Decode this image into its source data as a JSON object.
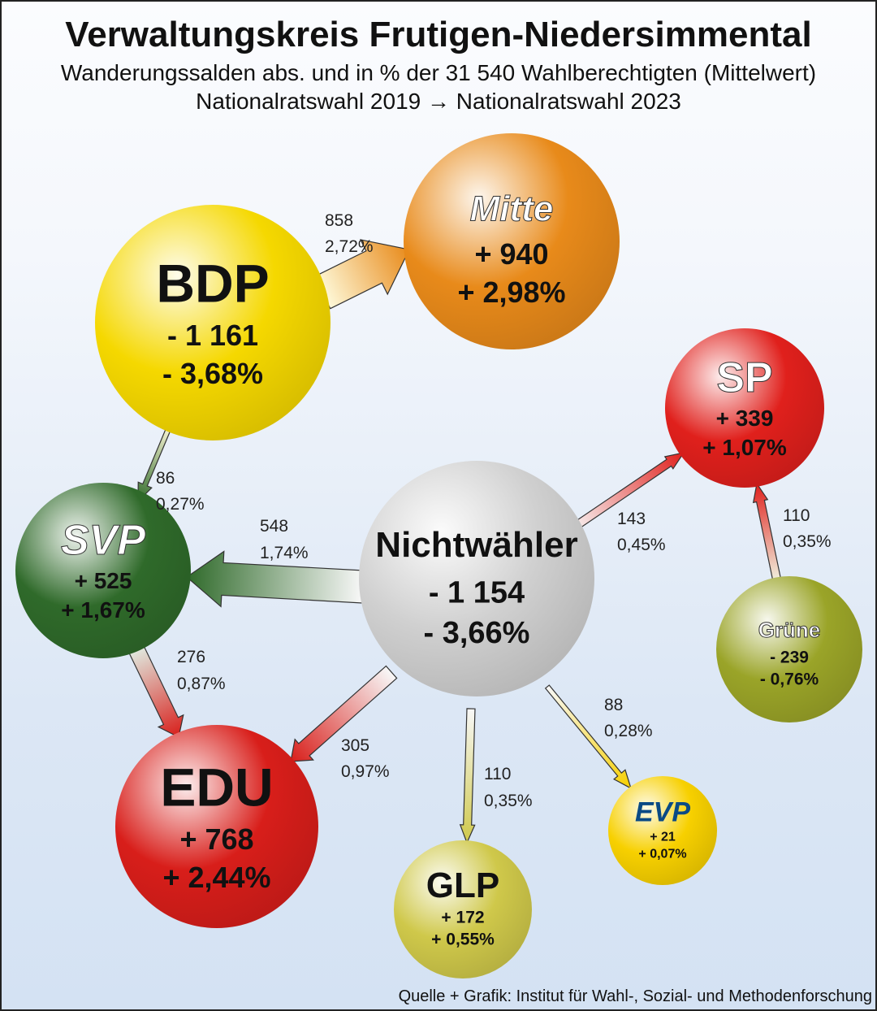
{
  "header": {
    "title": "Verwaltungskreis Frutigen-Niedersimmental",
    "subtitle": "Wanderungssalden abs. und in % der 31 540 Wahlberechtigten (Mittelwert)",
    "subtitle2": "Nationalratswahl 2019 → Nationalratswahl 2023"
  },
  "parties": [
    {
      "name": "BDP",
      "abs": "- 1 161",
      "pct": "- 3,68%",
      "color": "#f5d800"
    },
    {
      "name": "Mitte",
      "abs": "+ 940",
      "pct": "+ 2,98%",
      "color": "#e88a1a"
    },
    {
      "name": "SP",
      "abs": "+ 339",
      "pct": "+ 1,07%",
      "color": "#e0201c"
    },
    {
      "name": "Nichtwähler",
      "abs": "- 1 154",
      "pct": "- 3,66%",
      "color": "#d0d0d0"
    },
    {
      "name": "SVP",
      "abs": "+ 525",
      "pct": "+ 1,67%",
      "color": "#2f6a2a"
    },
    {
      "name": "Grüne",
      "abs": "- 239",
      "pct": "- 0,76%",
      "color": "#9aa428"
    },
    {
      "name": "EDU",
      "abs": "+ 768",
      "pct": "+ 2,44%",
      "color": "#d81e1a"
    },
    {
      "name": "GLP",
      "abs": "+ 172",
      "pct": "+ 0,55%",
      "color": "#cfc84a"
    },
    {
      "name": "EVP",
      "abs": "+ 21",
      "pct": "+ 0,07%",
      "color": "#f7d000"
    }
  ],
  "flows": [
    {
      "from": "BDP",
      "to": "Mitte",
      "value": "858",
      "pct": "2,72%"
    },
    {
      "from": "BDP",
      "to": "SVP",
      "value": "86",
      "pct": "0,27%"
    },
    {
      "from": "Nichtwähler",
      "to": "SVP",
      "value": "548",
      "pct": "1,74%"
    },
    {
      "from": "SVP",
      "to": "EDU",
      "value": "276",
      "pct": "0,87%"
    },
    {
      "from": "Nichtwähler",
      "to": "EDU",
      "value": "305",
      "pct": "0,97%"
    },
    {
      "from": "Nichtwähler",
      "to": "GLP",
      "value": "110",
      "pct": "0,35%"
    },
    {
      "from": "Nichtwähler",
      "to": "EVP",
      "value": "88",
      "pct": "0,28%"
    },
    {
      "from": "Nichtwähler",
      "to": "SP",
      "value": "143",
      "pct": "0,45%"
    },
    {
      "from": "Grüne",
      "to": "SP",
      "value": "110",
      "pct": "0,35%"
    }
  ],
  "source": "Quelle + Grafik: Institut für Wahl-, Sozial- und Methodenforschung"
}
